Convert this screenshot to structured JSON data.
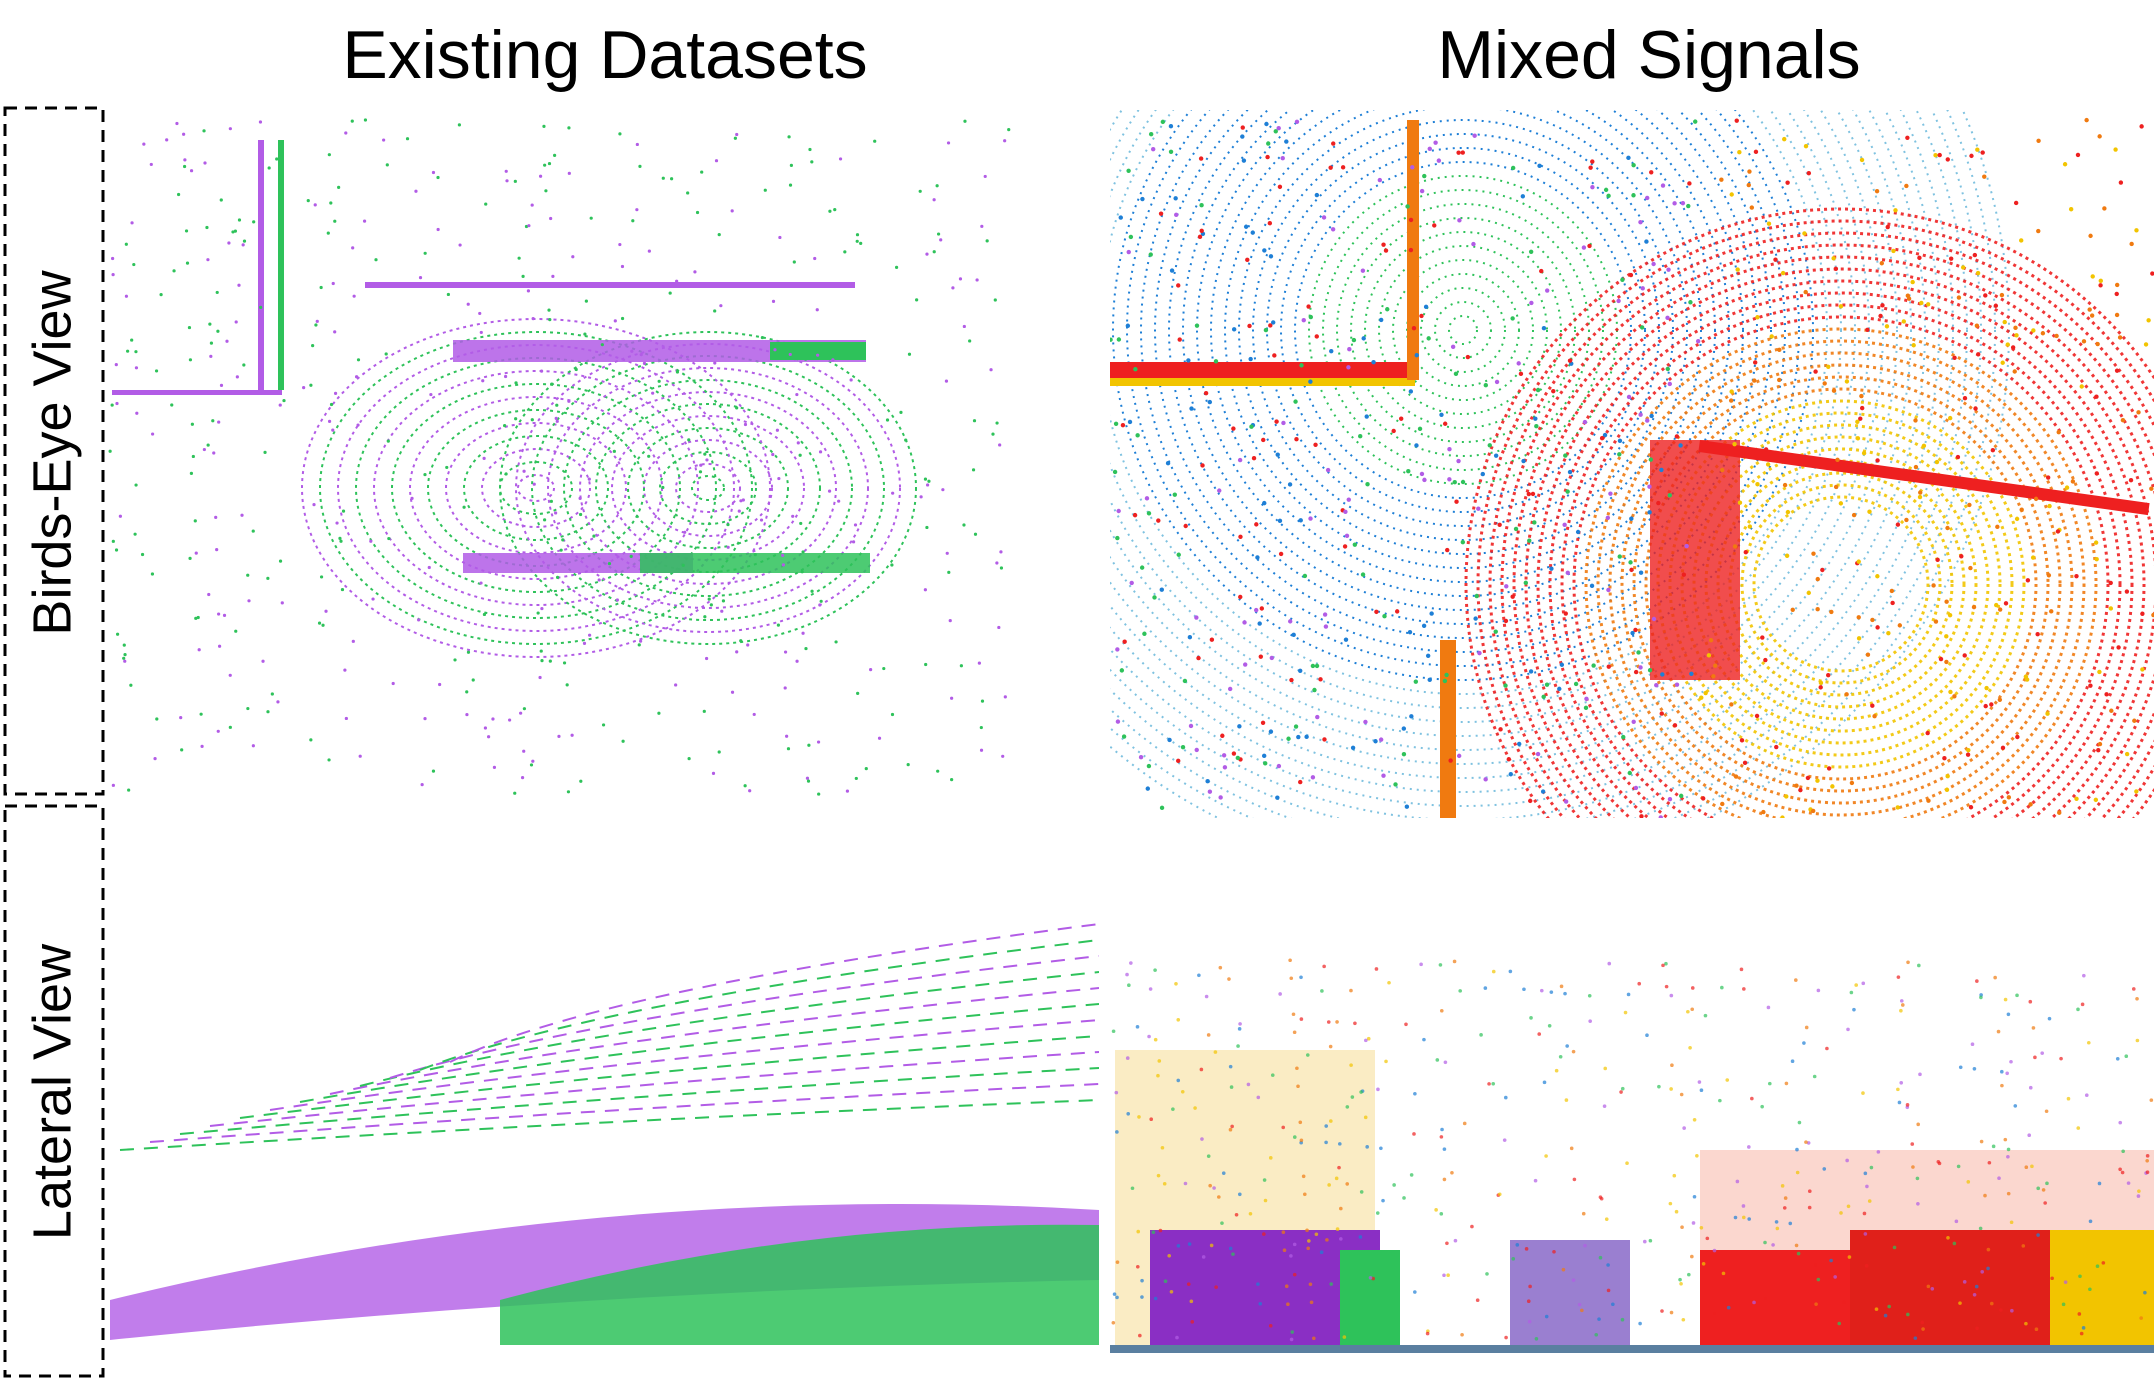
{
  "columns": [
    "Existing Datasets",
    "Mixed Signals"
  ],
  "rows": [
    "Birds-Eye View",
    "Lateral View"
  ]
}
